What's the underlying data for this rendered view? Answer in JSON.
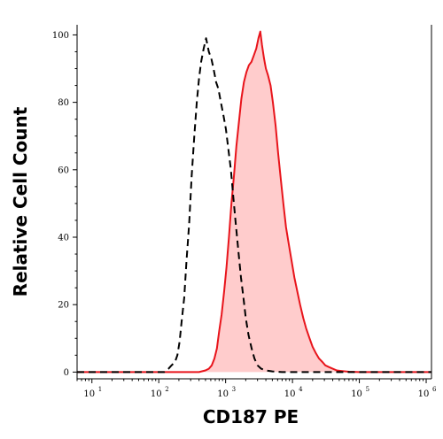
{
  "chart_data": {
    "type": "area",
    "xlabel": "CD187 PE",
    "ylabel": "Relative Cell Count",
    "x_scale": "log",
    "xlim": [
      6,
      1200000
    ],
    "ylim": [
      -2,
      103
    ],
    "grid": false,
    "x_ticks": [
      {
        "value": 10,
        "base": "10",
        "exp": "1"
      },
      {
        "value": 100,
        "base": "10",
        "exp": "2"
      },
      {
        "value": 1000,
        "base": "10",
        "exp": "3"
      },
      {
        "value": 10000,
        "base": "10",
        "exp": "4"
      },
      {
        "value": 100000,
        "base": "10",
        "exp": "5"
      },
      {
        "value": 1000000,
        "base": "10",
        "exp": "6"
      }
    ],
    "y_ticks": [
      0,
      20,
      40,
      60,
      80,
      100
    ],
    "series": [
      {
        "style": "dashed",
        "color": "#000000",
        "x": [
          6,
          120,
          140,
          155,
          175,
          190,
          205,
          220,
          240,
          260,
          285,
          310,
          340,
          370,
          400,
          430,
          470,
          510,
          560,
          610,
          660,
          720,
          780,
          850,
          930,
          1010,
          1100,
          1200,
          1300,
          1420,
          1550,
          1700,
          1850,
          2000,
          2200,
          2450,
          2700,
          3000,
          3400,
          4000,
          5000,
          7000,
          20000,
          1200000
        ],
        "y": [
          0,
          0,
          1,
          2,
          3,
          5,
          9,
          15,
          22,
          33,
          44,
          58,
          70,
          80,
          87,
          92,
          96,
          99,
          95,
          93,
          90,
          86,
          84,
          80,
          76,
          72,
          66,
          60,
          52,
          44,
          36,
          28,
          22,
          16,
          11,
          7,
          4,
          2,
          1,
          0.5,
          0.2,
          0,
          0,
          0
        ]
      },
      {
        "style": "filled",
        "color": "#e8141b",
        "fill": "#ffcccc",
        "x": [
          6,
          400,
          500,
          560,
          620,
          680,
          740,
          800,
          870,
          950,
          1030,
          1120,
          1220,
          1330,
          1450,
          1580,
          1720,
          1880,
          2050,
          2230,
          2430,
          2650,
          2880,
          3100,
          3300,
          3500,
          3750,
          4000,
          4300,
          4700,
          5100,
          5600,
          6100,
          6700,
          7300,
          8000,
          8800,
          9700,
          10700,
          11800,
          13000,
          14500,
          16000,
          18000,
          20000,
          22500,
          25000,
          28000,
          31000,
          35000,
          40000,
          46000,
          55000,
          70000,
          100000,
          1200000
        ],
        "y": [
          0,
          0,
          0.5,
          1,
          2,
          4,
          7,
          12,
          17,
          24,
          31,
          40,
          50,
          58,
          67,
          74,
          81,
          86,
          89,
          91,
          92,
          94,
          96,
          99,
          101,
          97,
          93,
          90,
          88,
          85,
          80,
          73,
          65,
          57,
          50,
          43,
          38,
          33,
          28,
          24,
          20,
          16,
          13,
          10,
          7.5,
          5.5,
          4,
          3,
          2,
          1.5,
          1,
          0.5,
          0.3,
          0.1,
          0,
          0
        ]
      }
    ]
  }
}
